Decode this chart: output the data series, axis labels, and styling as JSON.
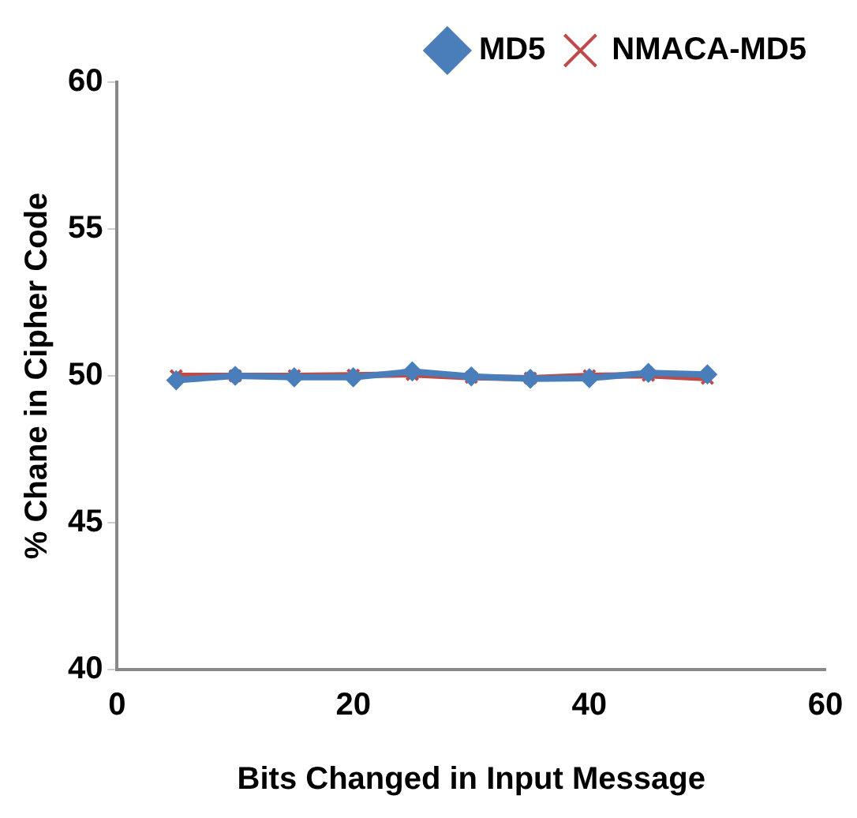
{
  "chart_data": {
    "type": "line",
    "xlabel": "Bits Changed in Input Message",
    "ylabel": "% Chane in Cipher Code",
    "x": [
      5,
      10,
      15,
      20,
      25,
      30,
      35,
      40,
      45,
      50
    ],
    "series": [
      {
        "name": "MD5",
        "color": "#4a7ebb",
        "marker": "diamond",
        "values": [
          49.85,
          50.0,
          49.95,
          49.95,
          50.15,
          49.98,
          49.9,
          49.92,
          50.1,
          50.05
        ]
      },
      {
        "name": "NMACA-MD5",
        "color": "#be4b48",
        "marker": "cross",
        "values": [
          50.0,
          50.0,
          50.0,
          50.02,
          50.05,
          49.95,
          49.92,
          50.0,
          50.02,
          49.92
        ]
      }
    ],
    "xlim": [
      0,
      60
    ],
    "xticks": [
      0,
      20,
      40,
      60
    ],
    "ylim": [
      40,
      60
    ],
    "yticks": [
      40,
      45,
      50,
      55,
      60
    ],
    "grid": false,
    "legend": "top right"
  }
}
